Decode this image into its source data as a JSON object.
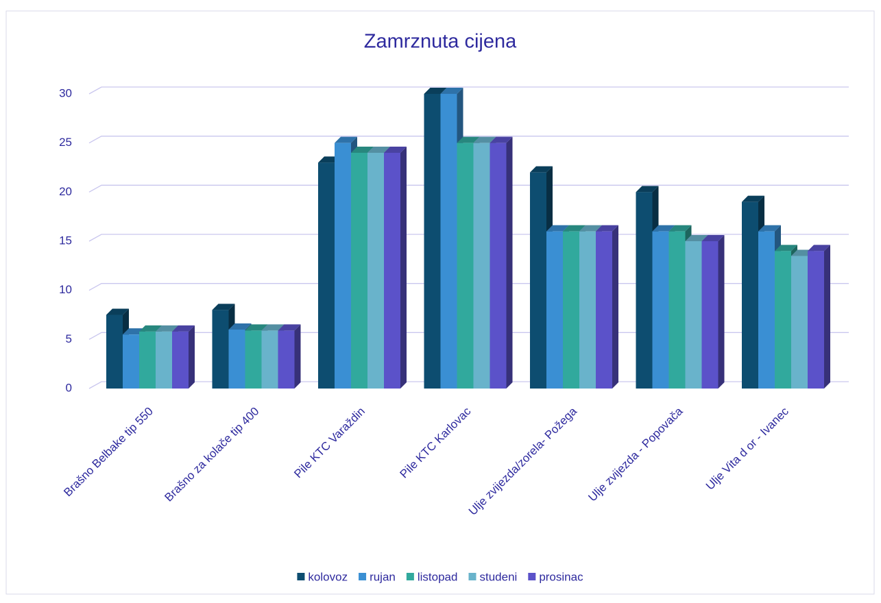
{
  "chart_data": {
    "type": "bar3d",
    "title": "Zamrznuta cijena",
    "categories": [
      "Brašno Belbake tip 550",
      "Brašno za kolače tip 400",
      "Pile KTC Varaždin",
      "Pile KTC Karlovac",
      "Ulje zvijezda/zorela- Požega",
      "Ulje  zvijezda - Popovača",
      "Ulje Vita d or - Ivanec"
    ],
    "series": [
      {
        "name": "kolovoz",
        "color": "#0d4d70",
        "values": [
          7.5,
          8,
          23,
          30,
          22,
          20,
          19
        ]
      },
      {
        "name": "rujan",
        "color": "#3a8fd3",
        "values": [
          5.5,
          6,
          25,
          30,
          16,
          16,
          16
        ]
      },
      {
        "name": "listopad",
        "color": "#31a99d",
        "values": [
          5.8,
          5.9,
          24,
          25,
          16,
          16,
          14
        ]
      },
      {
        "name": "studeni",
        "color": "#69b3cb",
        "values": [
          5.8,
          5.9,
          24,
          25,
          16,
          15,
          13.5
        ]
      },
      {
        "name": "prosinac",
        "color": "#5b52c9",
        "values": [
          5.8,
          5.9,
          24,
          25,
          16,
          15,
          14
        ]
      }
    ],
    "ylim": [
      0,
      30
    ],
    "yticks": [
      0,
      5,
      10,
      15,
      20,
      25,
      30
    ],
    "grid": true,
    "legend": "bottom"
  }
}
